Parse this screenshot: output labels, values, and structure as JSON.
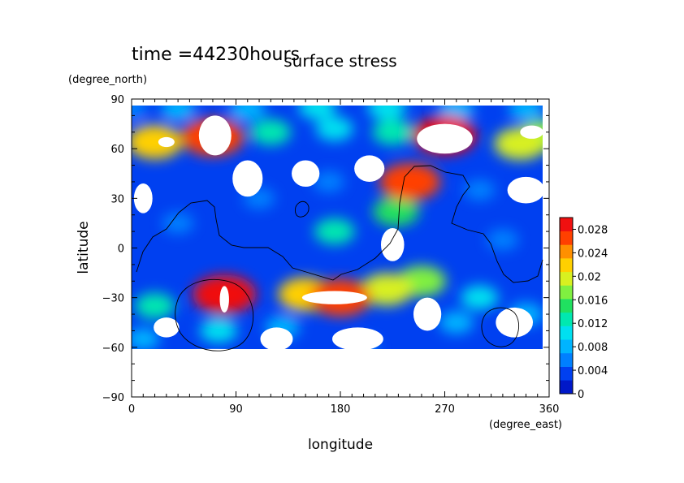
{
  "chart_data": {
    "type": "heatmap",
    "title": "surface stress",
    "subtitle": "time =44230hours",
    "xlabel": "longitude",
    "ylabel": "latitude",
    "x_units": "(degree_east)",
    "y_units": "(degree_north)",
    "xlim": [
      0,
      360
    ],
    "ylim": [
      -90,
      90
    ],
    "x_ticks": [
      "0",
      "90",
      "180",
      "270",
      "360"
    ],
    "y_ticks": [
      "90",
      "60",
      "30",
      "0",
      "−30",
      "−60",
      "−90"
    ],
    "colorbar": {
      "min": 0,
      "max": 0.03,
      "tick_labels": [
        "0.028",
        "0.024",
        "0.02",
        "0.016",
        "0.012",
        "0.008",
        "0.004",
        "0"
      ],
      "colors": [
        "#0018c8",
        "#0040f0",
        "#0080ff",
        "#00b4ff",
        "#00e0f0",
        "#00e8b0",
        "#20e060",
        "#80f040",
        "#d8f020",
        "#ffd000",
        "#ff9000",
        "#ff4000",
        "#f01010"
      ]
    },
    "features": [
      {
        "lon": 0,
        "lat": 84,
        "value": 0.006
      },
      {
        "lon": 40,
        "lat": 84,
        "value": 0.008
      },
      {
        "lon": 100,
        "lat": 84,
        "value": 0.009
      },
      {
        "lon": 160,
        "lat": 85,
        "value": 0.01
      },
      {
        "lon": 220,
        "lat": 85,
        "value": 0.011
      },
      {
        "lon": 280,
        "lat": 84,
        "value": 0.009
      },
      {
        "lon": 340,
        "lat": 84,
        "value": 0.008
      },
      {
        "lon": 20,
        "lat": 64,
        "value": 0.022
      },
      {
        "lon": 70,
        "lat": 67,
        "value": 0.027
      },
      {
        "lon": 120,
        "lat": 70,
        "value": 0.012
      },
      {
        "lon": 175,
        "lat": 72,
        "value": 0.01
      },
      {
        "lon": 225,
        "lat": 70,
        "value": 0.012
      },
      {
        "lon": 270,
        "lat": 68,
        "value": 0.028
      },
      {
        "lon": 335,
        "lat": 63,
        "value": 0.02
      },
      {
        "lon": 355,
        "lat": 68,
        "value": 0.018
      },
      {
        "lon": 240,
        "lat": 40,
        "value": 0.026
      },
      {
        "lon": 228,
        "lat": 22,
        "value": 0.016
      },
      {
        "lon": 175,
        "lat": 10,
        "value": 0.012
      },
      {
        "lon": 40,
        "lat": 15,
        "value": 0.006
      },
      {
        "lon": 110,
        "lat": 30,
        "value": 0.006
      },
      {
        "lon": 170,
        "lat": 40,
        "value": 0.006
      },
      {
        "lon": 300,
        "lat": 35,
        "value": 0.006
      },
      {
        "lon": 320,
        "lat": 5,
        "value": 0.006
      },
      {
        "lon": 80,
        "lat": -28,
        "value": 0.028
      },
      {
        "lon": 75,
        "lat": -50,
        "value": 0.01
      },
      {
        "lon": 180,
        "lat": -30,
        "value": 0.026
      },
      {
        "lon": 150,
        "lat": -28,
        "value": 0.022
      },
      {
        "lon": 220,
        "lat": -25,
        "value": 0.02
      },
      {
        "lon": 250,
        "lat": -20,
        "value": 0.018
      },
      {
        "lon": 300,
        "lat": -30,
        "value": 0.01
      },
      {
        "lon": 20,
        "lat": -35,
        "value": 0.012
      },
      {
        "lon": 130,
        "lat": -48,
        "value": 0.008
      },
      {
        "lon": 280,
        "lat": -45,
        "value": 0.008
      },
      {
        "lon": 340,
        "lat": -40,
        "value": 0.008
      },
      {
        "lon": 10,
        "lat": -55,
        "value": 0.007
      },
      {
        "lon": 200,
        "lat": -60,
        "value": 0.005
      }
    ],
    "calm": [
      {
        "lon": 72,
        "lat": 68,
        "r": [
          14,
          12
        ]
      },
      {
        "lon": 270,
        "lat": 66,
        "r": [
          24,
          9
        ]
      },
      {
        "lon": 30,
        "lat": 64,
        "r": [
          7,
          3
        ]
      },
      {
        "lon": 345,
        "lat": 70,
        "r": [
          10,
          4
        ]
      },
      {
        "lon": 10,
        "lat": 30,
        "r": [
          8,
          9
        ]
      },
      {
        "lon": 100,
        "lat": 42,
        "r": [
          13,
          11
        ]
      },
      {
        "lon": 150,
        "lat": 45,
        "r": [
          12,
          8
        ]
      },
      {
        "lon": 205,
        "lat": 48,
        "r": [
          13,
          8
        ]
      },
      {
        "lon": 340,
        "lat": 35,
        "r": [
          16,
          8
        ]
      },
      {
        "lon": 175,
        "lat": -30,
        "r": [
          28,
          4
        ]
      },
      {
        "lon": 80,
        "lat": -31,
        "r": [
          4,
          8
        ]
      },
      {
        "lon": 125,
        "lat": -55,
        "r": [
          14,
          7
        ]
      },
      {
        "lon": 195,
        "lat": -55,
        "r": [
          22,
          7
        ]
      },
      {
        "lon": 30,
        "lat": -48,
        "r": [
          11,
          6
        ]
      },
      {
        "lon": 255,
        "lat": -40,
        "r": [
          12,
          10
        ]
      },
      {
        "lon": 330,
        "lat": -45,
        "r": [
          16,
          9
        ]
      },
      {
        "lon": 225,
        "lat": 2,
        "r": [
          10,
          10
        ]
      },
      {
        "lon": 70,
        "lat": -75,
        "r": [
          200,
          14
        ]
      }
    ],
    "grid": false
  }
}
